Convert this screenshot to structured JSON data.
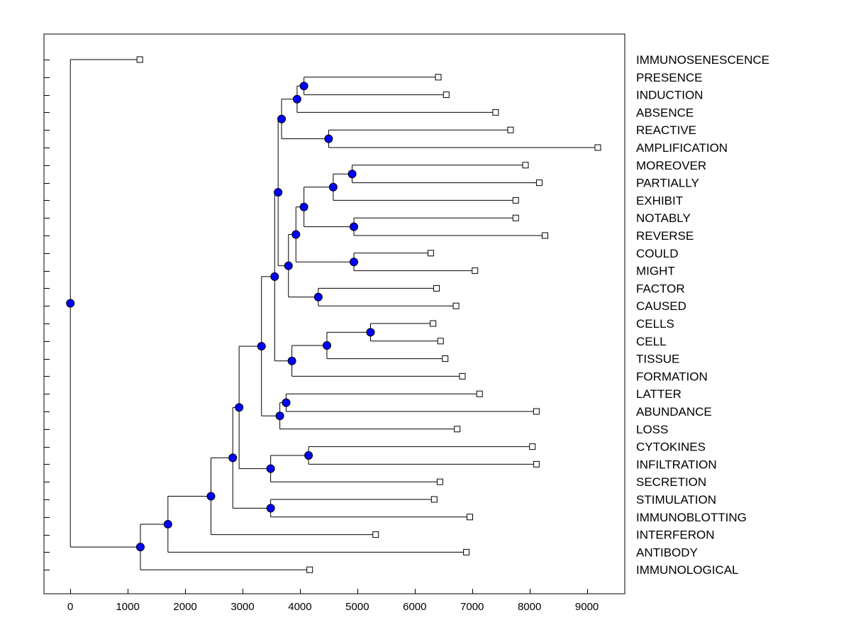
{
  "chart_data": {
    "type": "dendrogram",
    "orientation": "horizontal",
    "xlim": [
      -460,
      9660
    ],
    "x_ticks": [
      0,
      1000,
      2000,
      3000,
      4000,
      5000,
      6000,
      7000,
      8000,
      9000
    ],
    "x_tick_labels": [
      "0",
      "1000",
      "2000",
      "3000",
      "4000",
      "5000",
      "6000",
      "7000",
      "8000",
      "9000"
    ],
    "leaves": [
      {
        "label": "IMMUNOSENESCENCE",
        "x": 1210
      },
      {
        "label": "PRESENCE",
        "x": 6410
      },
      {
        "label": "INDUCTION",
        "x": 6550
      },
      {
        "label": "ABSENCE",
        "x": 7410
      },
      {
        "label": "REACTIVE",
        "x": 7670
      },
      {
        "label": "AMPLIFICATION",
        "x": 9190
      },
      {
        "label": "MOREOVER",
        "x": 7930
      },
      {
        "label": "PARTIALLY",
        "x": 8170
      },
      {
        "label": "EXHIBIT",
        "x": 7760
      },
      {
        "label": "NOTABLY",
        "x": 7760
      },
      {
        "label": "REVERSE",
        "x": 8270
      },
      {
        "label": "COULD",
        "x": 6280
      },
      {
        "label": "MIGHT",
        "x": 7050
      },
      {
        "label": "FACTOR",
        "x": 6380
      },
      {
        "label": "CAUSED",
        "x": 6720
      },
      {
        "label": "CELLS",
        "x": 6320
      },
      {
        "label": "CELL",
        "x": 6450
      },
      {
        "label": "TISSUE",
        "x": 6530
      },
      {
        "label": "FORMATION",
        "x": 6830
      },
      {
        "label": "LATTER",
        "x": 7130
      },
      {
        "label": "ABUNDANCE",
        "x": 8120
      },
      {
        "label": "LOSS",
        "x": 6740
      },
      {
        "label": "CYTOKINES",
        "x": 8050
      },
      {
        "label": "INFILTRATION",
        "x": 8120
      },
      {
        "label": "SECRETION",
        "x": 6440
      },
      {
        "label": "STIMULATION",
        "x": 6340
      },
      {
        "label": "IMMUNOBLOTTING",
        "x": 6960
      },
      {
        "label": "INTERFERON",
        "x": 5320
      },
      {
        "label": "ANTIBODY",
        "x": 6900
      },
      {
        "label": "IMMUNOLOGICAL",
        "x": 4170
      }
    ],
    "nodes": [
      {
        "id": "n1",
        "x": 4070,
        "children": [
          "L1",
          "L2"
        ]
      },
      {
        "id": "n2",
        "x": 3950,
        "children": [
          "n1",
          "L3"
        ]
      },
      {
        "id": "n3",
        "x": 4500,
        "children": [
          "L4",
          "L5"
        ]
      },
      {
        "id": "n4",
        "x": 3680,
        "children": [
          "n2",
          "n3"
        ]
      },
      {
        "id": "n5",
        "x": 4910,
        "children": [
          "L6",
          "L7"
        ]
      },
      {
        "id": "n6",
        "x": 4580,
        "children": [
          "n5",
          "L8"
        ]
      },
      {
        "id": "n7",
        "x": 4940,
        "children": [
          "L9",
          "L10"
        ]
      },
      {
        "id": "n8",
        "x": 4070,
        "children": [
          "n6",
          "n7"
        ]
      },
      {
        "id": "n9",
        "x": 4940,
        "children": [
          "L11",
          "L12"
        ]
      },
      {
        "id": "n10",
        "x": 3930,
        "children": [
          "n8",
          "n9"
        ]
      },
      {
        "id": "n11",
        "x": 4320,
        "children": [
          "L13",
          "L14"
        ]
      },
      {
        "id": "n12",
        "x": 3800,
        "children": [
          "n10",
          "n11"
        ]
      },
      {
        "id": "n13",
        "x": 3620,
        "children": [
          "n4",
          "n12"
        ]
      },
      {
        "id": "n14",
        "x": 5230,
        "children": [
          "L15",
          "L16"
        ]
      },
      {
        "id": "n15",
        "x": 4470,
        "children": [
          "n14",
          "L17"
        ]
      },
      {
        "id": "n16",
        "x": 3860,
        "children": [
          "n15",
          "L18"
        ]
      },
      {
        "id": "n17",
        "x": 3560,
        "children": [
          "n13",
          "n16"
        ]
      },
      {
        "id": "n18",
        "x": 3760,
        "children": [
          "L19",
          "L20"
        ]
      },
      {
        "id": "n19",
        "x": 3650,
        "children": [
          "n18",
          "L21"
        ]
      },
      {
        "id": "n20",
        "x": 3330,
        "children": [
          "n17",
          "n19"
        ]
      },
      {
        "id": "n21",
        "x": 4150,
        "children": [
          "L22",
          "L23"
        ]
      },
      {
        "id": "n22",
        "x": 3490,
        "children": [
          "n21",
          "L24"
        ]
      },
      {
        "id": "n23",
        "x": 2940,
        "children": [
          "n20",
          "n22"
        ]
      },
      {
        "id": "n24",
        "x": 3490,
        "children": [
          "L25",
          "L26"
        ]
      },
      {
        "id": "n25",
        "x": 2830,
        "children": [
          "n23",
          "n24"
        ]
      },
      {
        "id": "n26",
        "x": 2450,
        "children": [
          "n25",
          "L27"
        ]
      },
      {
        "id": "n27",
        "x": 1700,
        "children": [
          "n26",
          "L28"
        ]
      },
      {
        "id": "n28",
        "x": 1220,
        "children": [
          "n27",
          "L29"
        ]
      },
      {
        "id": "n29",
        "x": 0,
        "children": [
          "L0",
          "n28"
        ]
      }
    ],
    "title": "",
    "xlabel": "",
    "ylabel": "",
    "grid": false,
    "leaf_marker_color": "#ffffff",
    "node_marker_color": "#0000ff"
  }
}
